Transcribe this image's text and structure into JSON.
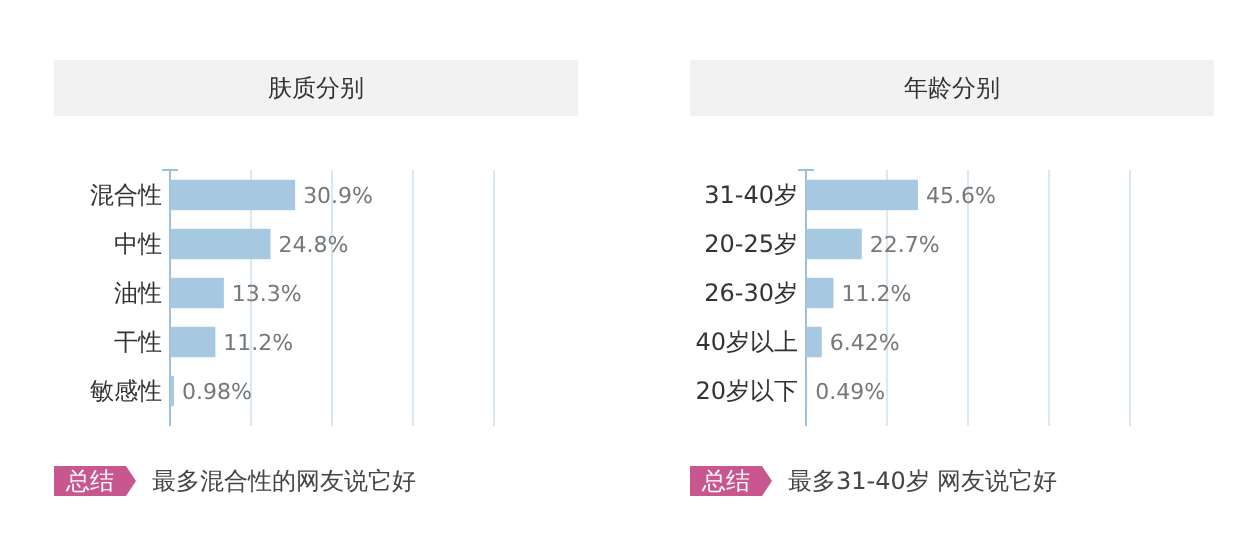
{
  "chart_data": [
    {
      "type": "bar",
      "orientation": "horizontal",
      "title": "肤质分别",
      "categories": [
        "混合性",
        "中性",
        "油性",
        "干性",
        "敏感性"
      ],
      "values": [
        30.9,
        24.8,
        13.3,
        11.2,
        0.98
      ],
      "value_labels": [
        "30.9%",
        "24.8%",
        "13.3%",
        "11.2%",
        "0.98%"
      ],
      "color": "#a6c8e0",
      "xlim": [
        0,
        80
      ],
      "xticks": [
        {
          "value": 20,
          "label": null
        },
        {
          "value": 40,
          "label": null
        },
        {
          "value": 60,
          "label": null
        },
        {
          "value": 80,
          "label": null
        }
      ],
      "grid": "x",
      "tick_labels": "y",
      "annotations": [
        "总结",
        "最多混合性的网友说它好"
      ]
    },
    {
      "type": "bar",
      "orientation": "horizontal",
      "title": "年龄分别",
      "categories": [
        "31-40岁",
        "20-25岁",
        "26-30岁",
        "40岁以上",
        "20岁以下"
      ],
      "values": [
        45.6,
        22.7,
        11.2,
        6.42,
        0.49
      ],
      "value_labels": [
        "45.6%",
        "22.7%",
        "11.2%",
        "6.42%",
        "0.49%"
      ],
      "color": "#a6c8e0",
      "xlim": [
        0,
        132
      ],
      "xticks": [
        {
          "value": 33,
          "label": null
        },
        {
          "value": 66,
          "label": null
        },
        {
          "value": 99,
          "label": null
        },
        {
          "value": 132,
          "label": null
        }
      ],
      "grid": "x",
      "tick_labels": "y",
      "annotations": [
        "总结",
        "最多31-40岁 网友说它好"
      ]
    }
  ]
}
